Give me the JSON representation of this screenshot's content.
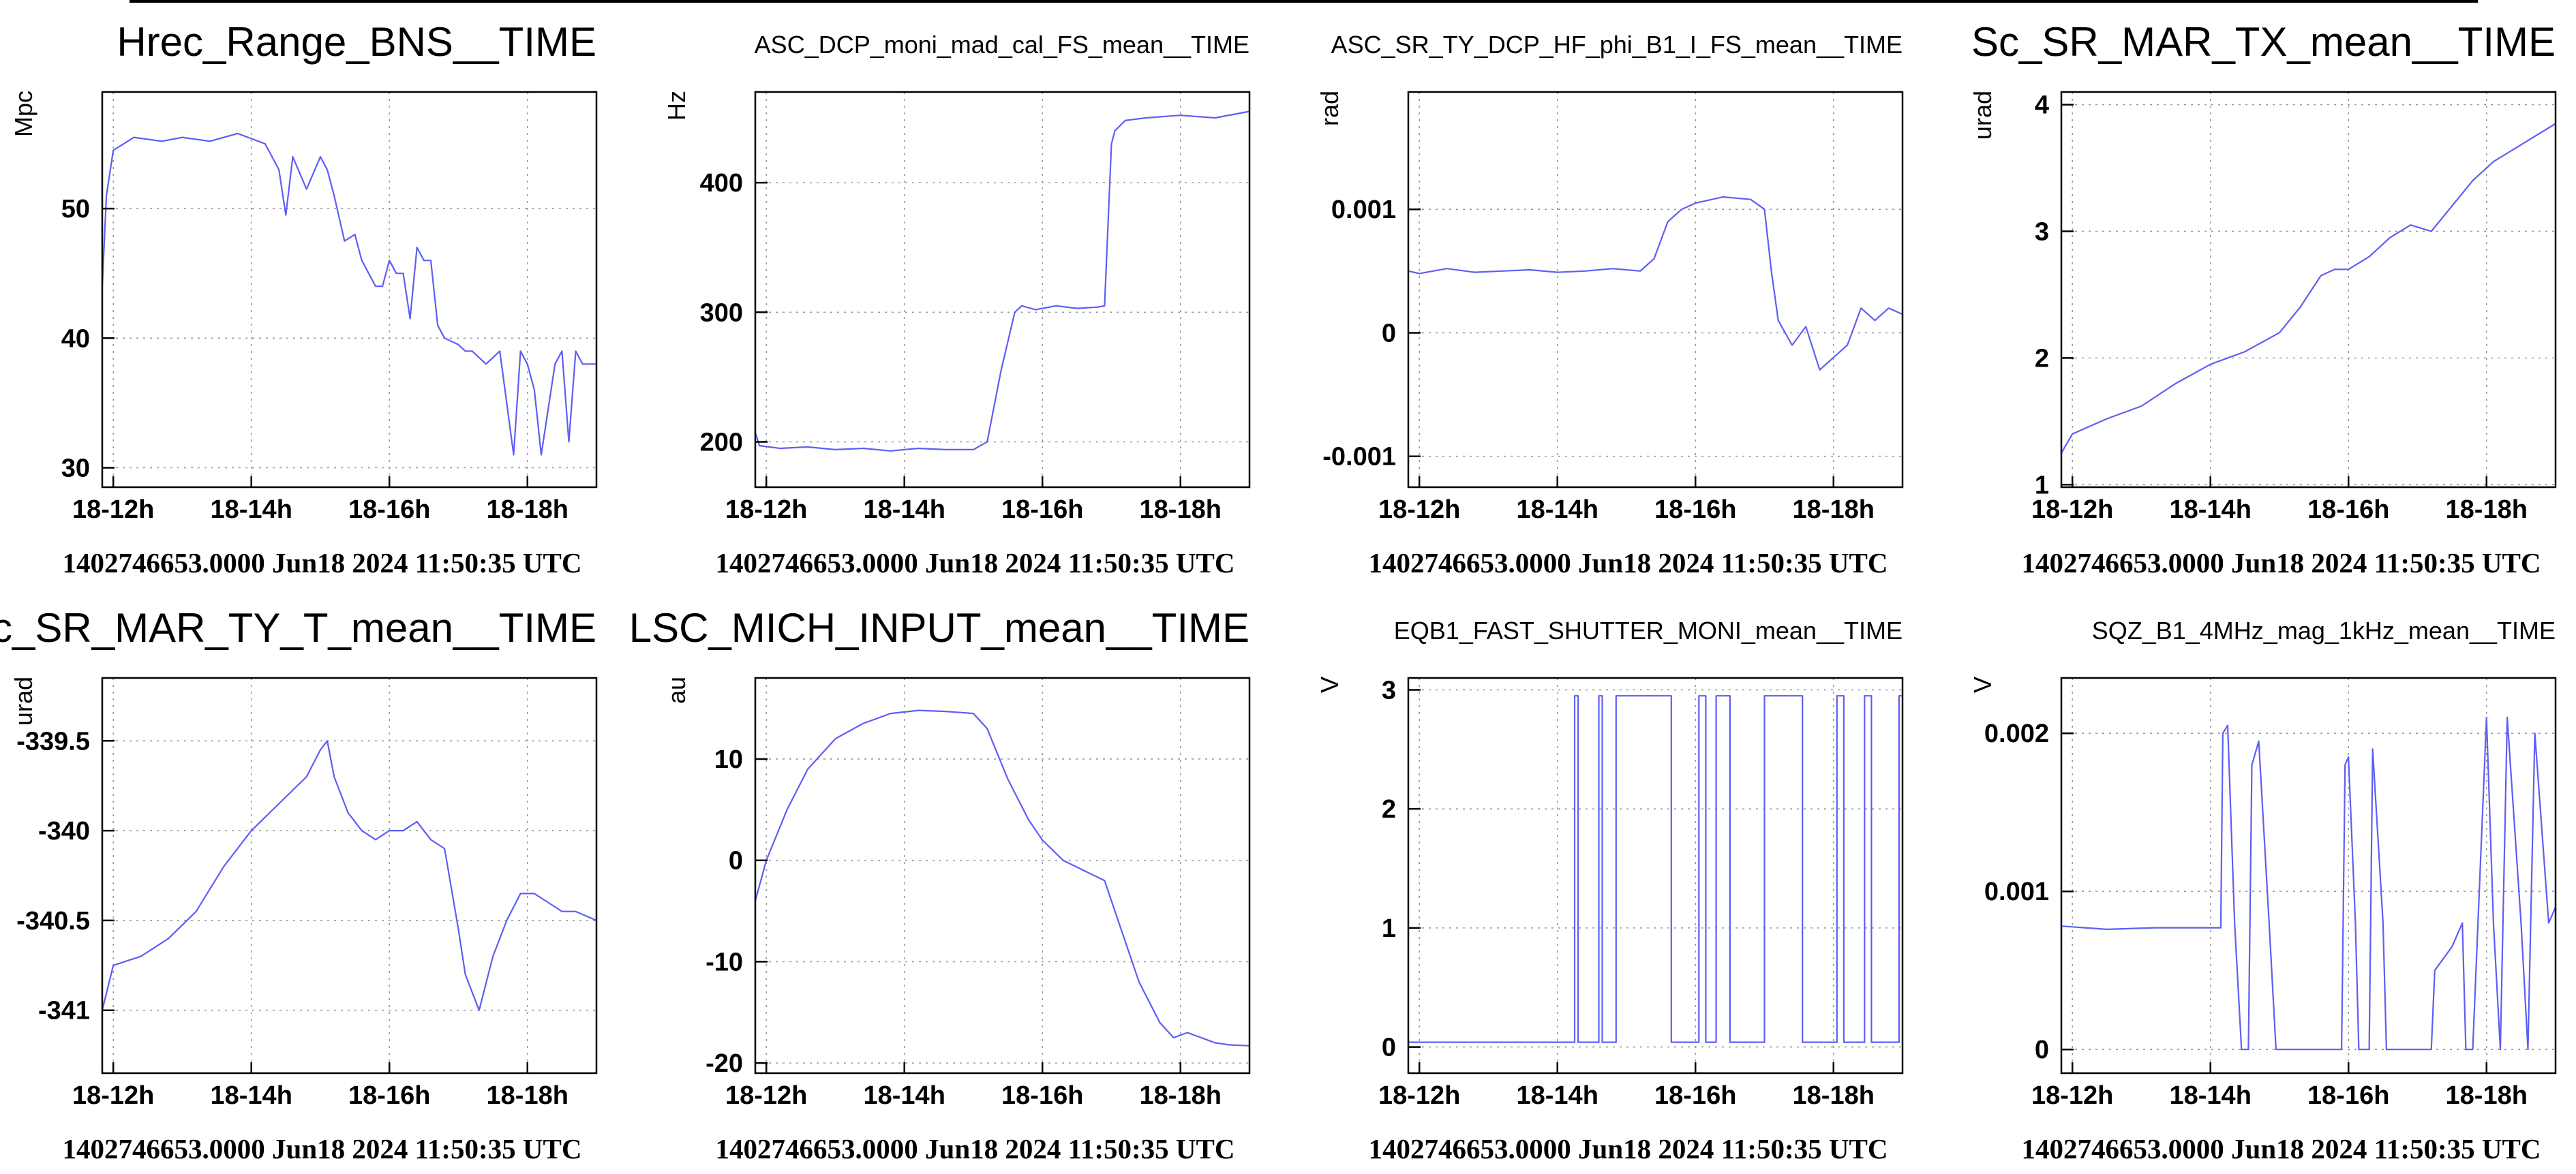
{
  "chart_data": [
    {
      "type": "line",
      "title": "Hrec_Range_BNS__TIME",
      "big_title": true,
      "ylabel": "Mpc",
      "xlabel": "",
      "xlim": [
        11.84,
        19.0
      ],
      "ylim": [
        28.5,
        59
      ],
      "yticks": [
        30,
        40,
        50
      ],
      "xticks": [
        {
          "x": 12,
          "label": "18-12h"
        },
        {
          "x": 14,
          "label": "18-14h"
        },
        {
          "x": 16,
          "label": "18-16h"
        },
        {
          "x": 18,
          "label": "18-18h"
        }
      ],
      "footer": "1402746653.0000 Jun18 2024 11:50:35 UTC",
      "grid": true,
      "series": [
        {
          "x": [
            11.84,
            11.9,
            12.0,
            12.3,
            12.7,
            13.0,
            13.4,
            13.8,
            14.2,
            14.4,
            14.5,
            14.6,
            14.8,
            15.0,
            15.1,
            15.2,
            15.35,
            15.5,
            15.6,
            15.8,
            15.9,
            16.0,
            16.1,
            16.2,
            16.3,
            16.4,
            16.5,
            16.6,
            16.7,
            16.8,
            17.0,
            17.1,
            17.2,
            17.4,
            17.6,
            17.8,
            17.9,
            18.0,
            18.1,
            18.2,
            18.4,
            18.5,
            18.6,
            18.7,
            18.8,
            18.9,
            19.0
          ],
          "y": [
            44,
            51,
            54.5,
            55.5,
            55.2,
            55.5,
            55.2,
            55.8,
            55,
            53,
            49.5,
            54,
            51.5,
            54,
            53,
            51,
            47.5,
            48,
            46,
            44,
            44,
            46,
            45,
            45,
            41.5,
            47,
            46,
            46,
            41,
            40,
            39.5,
            39,
            39,
            38,
            39,
            31,
            39,
            38,
            36,
            31,
            38,
            39,
            32,
            39,
            38,
            38,
            38
          ]
        }
      ]
    },
    {
      "type": "line",
      "title": "ASC_DCP_moni_mad_cal_FS_mean__TIME",
      "big_title": false,
      "ylabel": "Hz",
      "xlabel": "",
      "xlim": [
        11.84,
        19.0
      ],
      "ylim": [
        165,
        470
      ],
      "yticks": [
        200,
        300,
        400
      ],
      "xticks": [
        {
          "x": 12,
          "label": "18-12h"
        },
        {
          "x": 14,
          "label": "18-14h"
        },
        {
          "x": 16,
          "label": "18-16h"
        },
        {
          "x": 18,
          "label": "18-18h"
        }
      ],
      "footer": "1402746653.0000 Jun18 2024 11:50:35 UTC",
      "grid": true,
      "series": [
        {
          "x": [
            11.84,
            11.9,
            12.2,
            12.6,
            13.0,
            13.4,
            13.8,
            14.2,
            14.6,
            15.0,
            15.2,
            15.4,
            15.6,
            15.7,
            15.9,
            16.2,
            16.5,
            16.8,
            16.9,
            17.0,
            17.05,
            17.2,
            17.5,
            18.0,
            18.5,
            19.0
          ],
          "y": [
            207,
            197,
            195,
            196,
            194,
            195,
            193,
            195,
            194,
            194,
            200,
            255,
            300,
            305,
            302,
            305,
            303,
            304,
            305,
            430,
            440,
            448,
            450,
            452,
            450,
            455
          ]
        }
      ]
    },
    {
      "type": "line",
      "title": "ASC_SR_TY_DCP_HF_phi_B1_I_FS_mean__TIME",
      "big_title": false,
      "ylabel": "rad",
      "xlabel": "",
      "xlim": [
        11.84,
        19.0
      ],
      "ylim": [
        -0.00125,
        0.00195
      ],
      "yticks": [
        -0.001,
        0,
        0.001
      ],
      "ytick_labels": [
        "-0.001",
        "0",
        "0.001"
      ],
      "xticks": [
        {
          "x": 12,
          "label": "18-12h"
        },
        {
          "x": 14,
          "label": "18-14h"
        },
        {
          "x": 16,
          "label": "18-16h"
        },
        {
          "x": 18,
          "label": "18-18h"
        }
      ],
      "footer": "1402746653.0000 Jun18 2024 11:50:35 UTC",
      "grid": true,
      "series": [
        {
          "x": [
            11.84,
            12.0,
            12.4,
            12.8,
            13.2,
            13.6,
            14.0,
            14.4,
            14.8,
            15.2,
            15.4,
            15.6,
            15.8,
            16.0,
            16.4,
            16.8,
            17.0,
            17.1,
            17.2,
            17.4,
            17.6,
            17.8,
            18.0,
            18.2,
            18.4,
            18.6,
            18.8,
            19.0
          ],
          "y": [
            0.0005,
            0.00048,
            0.00052,
            0.00049,
            0.0005,
            0.00051,
            0.00049,
            0.0005,
            0.00052,
            0.0005,
            0.0006,
            0.0009,
            0.001,
            0.00105,
            0.0011,
            0.00108,
            0.001,
            0.0005,
            0.0001,
            -0.0001,
            5e-05,
            -0.0003,
            -0.0002,
            -0.0001,
            0.0002,
            0.0001,
            0.0002,
            0.00015
          ]
        }
      ]
    },
    {
      "type": "line",
      "title": "Sc_SR_MAR_TX_mean__TIME",
      "big_title": true,
      "ylabel": "urad",
      "xlabel": "",
      "xlim": [
        11.84,
        19.0
      ],
      "ylim": [
        0.98,
        4.1
      ],
      "yticks": [
        1,
        2,
        3,
        4
      ],
      "xticks": [
        {
          "x": 12,
          "label": "18-12h"
        },
        {
          "x": 14,
          "label": "18-14h"
        },
        {
          "x": 16,
          "label": "18-16h"
        },
        {
          "x": 18,
          "label": "18-18h"
        }
      ],
      "footer": "1402746653.0000 Jun18 2024 11:50:35 UTC",
      "grid": true,
      "series": [
        {
          "x": [
            11.84,
            12.0,
            12.5,
            13.0,
            13.5,
            14.0,
            14.5,
            15.0,
            15.3,
            15.6,
            15.8,
            16.0,
            16.3,
            16.6,
            16.9,
            17.2,
            17.5,
            17.8,
            18.1,
            18.4,
            18.7,
            19.0
          ],
          "y": [
            1.25,
            1.4,
            1.52,
            1.62,
            1.8,
            1.95,
            2.05,
            2.2,
            2.4,
            2.65,
            2.7,
            2.7,
            2.8,
            2.95,
            3.05,
            3.0,
            3.2,
            3.4,
            3.55,
            3.65,
            3.75,
            3.85
          ]
        }
      ]
    },
    {
      "type": "line",
      "title": "Sc_SR_MAR_TY_T_mean__TIME",
      "big_title": true,
      "ylabel": "urad",
      "xlabel": "",
      "xlim": [
        11.84,
        19.0
      ],
      "ylim": [
        -341.35,
        -339.15
      ],
      "yticks": [
        -341,
        -340.5,
        -340,
        -339.5
      ],
      "ytick_labels": [
        "-341",
        "-340.5",
        "-340",
        "-339.5"
      ],
      "xticks": [
        {
          "x": 12,
          "label": "18-12h"
        },
        {
          "x": 14,
          "label": "18-14h"
        },
        {
          "x": 16,
          "label": "18-16h"
        },
        {
          "x": 18,
          "label": "18-18h"
        }
      ],
      "footer": "1402746653.0000 Jun18 2024 11:50:35 UTC",
      "grid": true,
      "series": [
        {
          "x": [
            11.84,
            12.0,
            12.4,
            12.8,
            13.2,
            13.6,
            14.0,
            14.4,
            14.8,
            15.0,
            15.1,
            15.2,
            15.4,
            15.6,
            15.8,
            16.0,
            16.2,
            16.4,
            16.6,
            16.8,
            17.0,
            17.1,
            17.3,
            17.5,
            17.7,
            17.9,
            18.1,
            18.3,
            18.5,
            18.7,
            19.0
          ],
          "y": [
            -341.0,
            -340.75,
            -340.7,
            -340.6,
            -340.45,
            -340.2,
            -340.0,
            -339.85,
            -339.7,
            -339.55,
            -339.5,
            -339.7,
            -339.9,
            -340.0,
            -340.05,
            -340.0,
            -340.0,
            -339.95,
            -340.05,
            -340.1,
            -340.55,
            -340.8,
            -341.0,
            -340.7,
            -340.5,
            -340.35,
            -340.35,
            -340.4,
            -340.45,
            -340.45,
            -340.5
          ]
        }
      ]
    },
    {
      "type": "line",
      "title": "LSC_MICH_INPUT_mean__TIME",
      "big_title": true,
      "ylabel": "au",
      "xlabel": "",
      "xlim": [
        11.84,
        19.0
      ],
      "ylim": [
        -21,
        18
      ],
      "yticks": [
        -20,
        -10,
        0,
        10
      ],
      "xticks": [
        {
          "x": 12,
          "label": "18-12h"
        },
        {
          "x": 14,
          "label": "18-14h"
        },
        {
          "x": 16,
          "label": "18-16h"
        },
        {
          "x": 18,
          "label": "18-18h"
        }
      ],
      "footer": "1402746653.0000 Jun18 2024 11:50:35 UTC",
      "grid": true,
      "series": [
        {
          "x": [
            11.84,
            12.0,
            12.3,
            12.6,
            13.0,
            13.4,
            13.8,
            14.2,
            14.6,
            15.0,
            15.2,
            15.5,
            15.8,
            16.0,
            16.3,
            16.6,
            16.9,
            17.1,
            17.4,
            17.7,
            17.9,
            18.1,
            18.3,
            18.5,
            18.7,
            19.0
          ],
          "y": [
            -4,
            0,
            5,
            9,
            12,
            13.5,
            14.5,
            14.8,
            14.7,
            14.5,
            13,
            8,
            4,
            2,
            0,
            -1,
            -2,
            -6,
            -12,
            -16,
            -17.5,
            -17,
            -17.5,
            -18,
            -18.2,
            -18.3
          ]
        }
      ]
    },
    {
      "type": "line",
      "title": "EQB1_FAST_SHUTTER_MONI_mean__TIME",
      "big_title": false,
      "ylabel": "V",
      "xlabel": "",
      "xlim": [
        11.84,
        19.0
      ],
      "ylim": [
        -0.22,
        3.1
      ],
      "yticks": [
        0,
        1,
        2,
        3
      ],
      "xticks": [
        {
          "x": 12,
          "label": "18-12h"
        },
        {
          "x": 14,
          "label": "18-14h"
        },
        {
          "x": 16,
          "label": "18-16h"
        },
        {
          "x": 18,
          "label": "18-18h"
        }
      ],
      "footer": "1402746653.0000 Jun18 2024 11:50:35 UTC",
      "grid": true,
      "series": [
        {
          "x": [
            11.84,
            14.25,
            14.25,
            14.3,
            14.3,
            14.6,
            14.6,
            14.65,
            14.65,
            14.85,
            14.85,
            15.65,
            15.65,
            16.05,
            16.05,
            16.15,
            16.15,
            16.3,
            16.3,
            16.5,
            16.5,
            17.0,
            17.0,
            17.55,
            17.55,
            18.05,
            18.05,
            18.15,
            18.15,
            18.45,
            18.45,
            18.55,
            18.55,
            18.95,
            18.95,
            19.0
          ],
          "y": [
            0.04,
            0.04,
            2.95,
            2.95,
            0.04,
            0.04,
            2.95,
            2.95,
            0.04,
            0.04,
            2.95,
            2.95,
            0.04,
            0.04,
            2.95,
            2.95,
            0.04,
            0.04,
            2.95,
            2.95,
            0.04,
            0.04,
            2.95,
            2.95,
            0.04,
            0.04,
            2.95,
            2.95,
            0.04,
            0.04,
            2.95,
            2.95,
            0.04,
            0.04,
            2.95,
            2.95
          ]
        }
      ]
    },
    {
      "type": "line",
      "title": "SQZ_B1_4MHz_mag_1kHz_mean__TIME",
      "big_title": false,
      "ylabel": "V",
      "xlabel": "",
      "xlim": [
        11.84,
        19.0
      ],
      "ylim": [
        -0.00015,
        0.00235
      ],
      "yticks": [
        0,
        0.001,
        0.002
      ],
      "ytick_labels": [
        "0",
        "0.001",
        "0.002"
      ],
      "xticks": [
        {
          "x": 12,
          "label": "18-12h"
        },
        {
          "x": 14,
          "label": "18-14h"
        },
        {
          "x": 16,
          "label": "18-16h"
        },
        {
          "x": 18,
          "label": "18-18h"
        }
      ],
      "footer": "1402746653.0000 Jun18 2024 11:50:35 UTC",
      "grid": true,
      "series": [
        {
          "x": [
            11.84,
            12.5,
            13.2,
            13.9,
            14.15,
            14.18,
            14.25,
            14.35,
            14.45,
            14.55,
            14.6,
            14.7,
            14.85,
            14.95,
            15.0,
            15.9,
            15.95,
            16.0,
            16.1,
            16.15,
            16.3,
            16.35,
            16.5,
            16.55,
            16.7,
            16.85,
            17.0,
            17.2,
            17.25,
            17.5,
            17.65,
            17.7,
            17.8,
            18.0,
            18.1,
            18.2,
            18.3,
            18.5,
            18.6,
            18.7,
            18.9,
            19.0
          ],
          "y": [
            0.00078,
            0.00076,
            0.00077,
            0.00077,
            0.00077,
            0.002,
            0.00205,
            0.0008,
            0.0,
            0.0,
            0.0018,
            0.00195,
            0.0008,
            0.0,
            0.0,
            0.0,
            0.0018,
            0.00185,
            0.0008,
            0.0,
            0.0,
            0.0019,
            0.0008,
            0.0,
            0.0,
            0.0,
            0.0,
            0.0,
            0.0005,
            0.00065,
            0.0008,
            0.0,
            0.0,
            0.0021,
            0.0008,
            0.0,
            0.0021,
            0.0008,
            0.0,
            0.002,
            0.0008,
            0.0009
          ]
        }
      ]
    }
  ]
}
